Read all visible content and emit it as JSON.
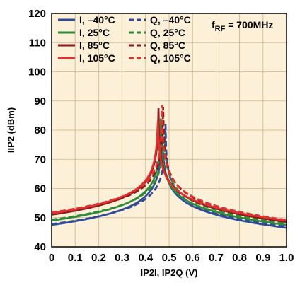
{
  "chart_data": {
    "type": "line",
    "title": "",
    "xlabel": "IP2I, IP2Q (V)",
    "ylabel": "IIP2 (dBm)",
    "xlim": [
      0,
      1.0
    ],
    "ylim": [
      40,
      120
    ],
    "xticks": [
      "0",
      "0.1",
      "0.2",
      "0.3",
      "0.4",
      "0.5",
      "0.6",
      "0.7",
      "0.8",
      "0.9",
      "1.0"
    ],
    "yticks": [
      "40",
      "50",
      "60",
      "70",
      "80",
      "90",
      "100",
      "110",
      "120"
    ],
    "grid": true,
    "legend_position": "top-left",
    "annotation": {
      "main": "f",
      "sub": "RF",
      "rest": " = 700MHz"
    },
    "series": [
      {
        "name": "I, –40°C",
        "color": "#2e4b9b",
        "dash": "solid",
        "peak_x": 0.47,
        "peak_y": 83,
        "left_base": 47.5,
        "right_base": 46.5
      },
      {
        "name": "Q, –40°C",
        "color": "#2e4b9b",
        "dash": "dashed",
        "peak_x": 0.485,
        "peak_y": 82,
        "left_base": 47.8,
        "right_base": 47.0
      },
      {
        "name": "I, 25°C",
        "color": "#2f8a3a",
        "dash": "solid",
        "peak_x": 0.465,
        "peak_y": 84,
        "left_base": 49.0,
        "right_base": 47.5
      },
      {
        "name": "Q, 25°C",
        "color": "#2f8a3a",
        "dash": "dashed",
        "peak_x": 0.478,
        "peak_y": 84.5,
        "left_base": 49.3,
        "right_base": 48.0
      },
      {
        "name": "I, 85°C",
        "color": "#8b1a1a",
        "dash": "solid",
        "peak_x": 0.455,
        "peak_y": 87.5,
        "left_base": 51.0,
        "right_base": 48.5
      },
      {
        "name": "Q, 85°C",
        "color": "#8b1a1a",
        "dash": "dashed",
        "peak_x": 0.475,
        "peak_y": 88,
        "left_base": 51.3,
        "right_base": 48.8
      },
      {
        "name": "I, 105°C",
        "color": "#e03030",
        "dash": "solid",
        "peak_x": 0.452,
        "peak_y": 87,
        "left_base": 51.5,
        "right_base": 49.0
      },
      {
        "name": "Q, 105°C",
        "color": "#e03030",
        "dash": "dashed",
        "peak_x": 0.47,
        "peak_y": 88.5,
        "left_base": 51.8,
        "right_base": 49.2
      }
    ]
  }
}
